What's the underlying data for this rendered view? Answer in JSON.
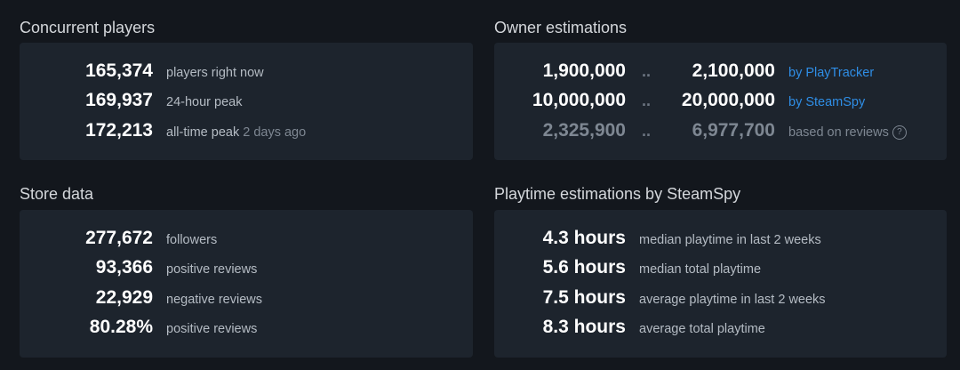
{
  "concurrent": {
    "title": "Concurrent players",
    "rows": [
      {
        "value": "165,374",
        "label": "players right now",
        "extra": ""
      },
      {
        "value": "169,937",
        "label": "24-hour peak",
        "extra": ""
      },
      {
        "value": "172,213",
        "label": "all-time peak",
        "extra": "2 days ago"
      }
    ]
  },
  "owners": {
    "title": "Owner estimations",
    "separator": "..",
    "rows": [
      {
        "low": "1,900,000",
        "high": "2,100,000",
        "source": "by PlayTracker"
      },
      {
        "low": "10,000,000",
        "high": "20,000,000",
        "source": "by SteamSpy"
      },
      {
        "low": "2,325,900",
        "high": "6,977,700",
        "source": "based on reviews"
      }
    ],
    "help_glyph": "?",
    "link_color": "#2f8ee6"
  },
  "store": {
    "title": "Store data",
    "rows": [
      {
        "value": "277,672",
        "label": "followers"
      },
      {
        "value": "93,366",
        "label": "positive reviews"
      },
      {
        "value": "22,929",
        "label": "negative reviews"
      },
      {
        "value": "80.28%",
        "label": "positive reviews"
      }
    ]
  },
  "playtime": {
    "title": "Playtime estimations by SteamSpy",
    "rows": [
      {
        "value": "4.3 hours",
        "label": "median playtime in last 2 weeks"
      },
      {
        "value": "5.6 hours",
        "label": "median total playtime"
      },
      {
        "value": "7.5 hours",
        "label": "average playtime in last 2 weeks"
      },
      {
        "value": "8.3 hours",
        "label": "average total playtime"
      }
    ]
  }
}
